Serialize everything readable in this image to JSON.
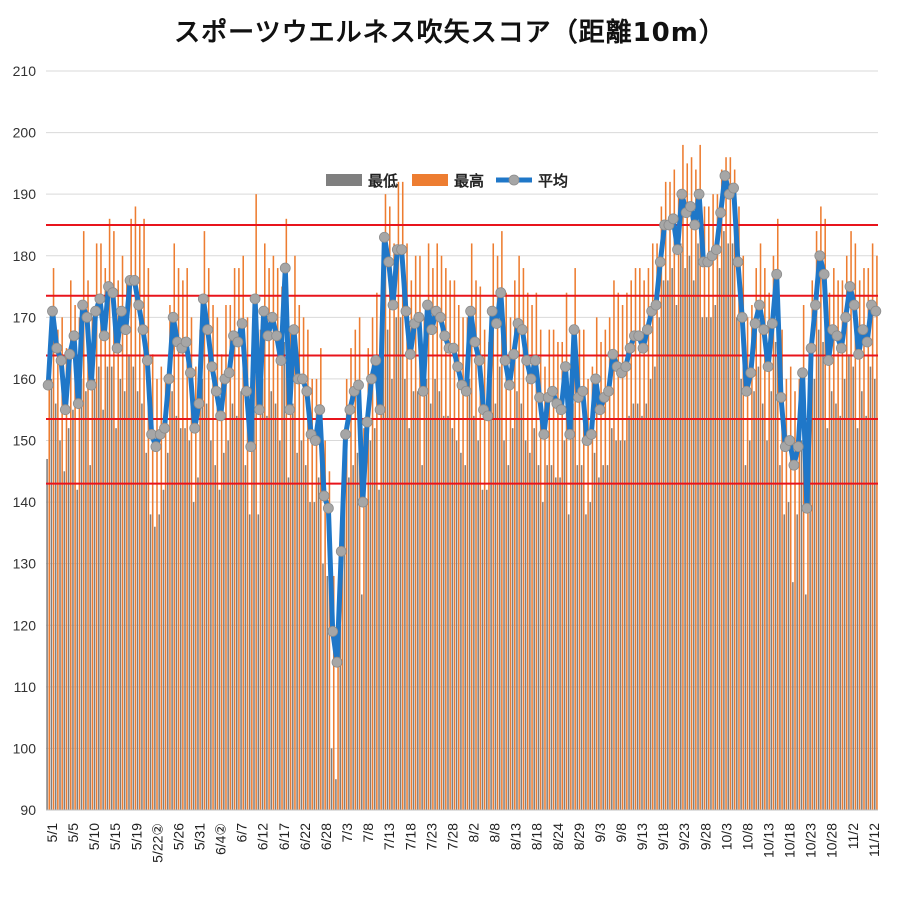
{
  "chart_data": {
    "type": "bar",
    "title": "スポーツウエルネス吹矢スコア（距離10m）",
    "ylim": [
      90,
      210
    ],
    "yticks": [
      90,
      100,
      110,
      120,
      130,
      140,
      150,
      160,
      170,
      180,
      190,
      200,
      210
    ],
    "grid": true,
    "legend_position": "top-center",
    "x_labels": [
      "5/1",
      "5/5",
      "5/10",
      "5/15",
      "5/19",
      "5/22②",
      "5/26",
      "5/31",
      "6/4②",
      "6/7",
      "6/12",
      "6/17",
      "6/22",
      "6/28",
      "7/3",
      "7/8",
      "7/13",
      "7/18",
      "7/23",
      "7/28",
      "8/2",
      "8/8",
      "8/13",
      "8/18",
      "8/24",
      "8/29",
      "9/3",
      "9/8",
      "9/13",
      "9/18",
      "9/23",
      "9/28",
      "10/3",
      "10/8",
      "10/13",
      "10/18",
      "10/23",
      "10/28",
      "11/2",
      "11/12"
    ],
    "reference_lines": [
      185,
      173.5,
      163.8,
      153.5,
      143
    ],
    "series": [
      {
        "name": "最低",
        "color": "#7f7f7f",
        "type": "bar"
      },
      {
        "name": "最高",
        "color": "#ed7d31",
        "type": "bar"
      },
      {
        "name": "平均",
        "color": "#1f77c8",
        "marker_color": "#a6a6a6",
        "type": "line"
      }
    ],
    "averages": [
      159,
      171,
      165,
      163,
      155,
      164,
      167,
      156,
      172,
      170,
      159,
      171,
      173,
      167,
      175,
      174,
      165,
      171,
      168,
      176,
      176,
      172,
      168,
      163,
      151,
      149,
      151,
      152,
      160,
      170,
      166,
      165,
      166,
      161,
      152,
      156,
      173,
      168,
      162,
      158,
      154,
      160,
      161,
      167,
      166,
      169,
      158,
      149,
      173,
      155,
      171,
      167,
      170,
      167,
      163,
      178,
      155,
      168,
      160,
      160,
      158,
      151,
      150,
      155,
      141,
      139,
      119,
      114,
      132,
      151,
      155,
      158,
      159,
      140,
      153,
      160,
      163,
      155,
      183,
      179,
      172,
      181,
      181,
      171,
      164,
      169,
      170,
      158,
      172,
      168,
      171,
      170,
      167,
      165,
      165,
      162,
      159,
      158,
      171,
      166,
      163,
      155,
      154,
      171,
      169,
      174,
      163,
      159,
      164,
      169,
      168,
      163,
      160,
      163,
      157,
      151,
      157,
      158,
      156,
      155,
      162,
      151,
      168,
      157,
      158,
      150,
      151,
      160,
      155,
      157,
      158,
      164,
      162,
      161,
      162,
      165,
      167,
      167,
      165,
      168,
      171,
      172,
      179,
      185,
      185,
      186,
      181,
      190,
      187,
      188,
      185,
      190,
      179,
      179,
      180,
      181,
      187,
      193,
      190,
      191,
      179,
      170,
      158,
      161,
      169,
      172,
      168,
      162,
      169,
      177,
      157,
      149,
      150,
      146,
      149,
      161,
      139,
      165,
      172,
      180,
      177,
      163,
      168,
      167,
      165,
      170,
      175,
      172,
      164,
      168,
      166,
      172,
      171
    ],
    "maxima": [
      165,
      178,
      168,
      170,
      165,
      176,
      172,
      170,
      184,
      176,
      170,
      182,
      182,
      178,
      186,
      184,
      176,
      180,
      176,
      186,
      188,
      185,
      186,
      178,
      164,
      160,
      162,
      160,
      172,
      182,
      178,
      176,
      178,
      170,
      162,
      168,
      184,
      178,
      172,
      170,
      164,
      172,
      172,
      178,
      178,
      180,
      170,
      160,
      190,
      168,
      182,
      178,
      180,
      178,
      175,
      186,
      168,
      180,
      172,
      170,
      168,
      160,
      160,
      165,
      150,
      145,
      128,
      124,
      142,
      160,
      165,
      168,
      170,
      152,
      165,
      170,
      174,
      168,
      190,
      188,
      182,
      192,
      192,
      182,
      176,
      180,
      180,
      170,
      182,
      178,
      182,
      180,
      178,
      176,
      176,
      172,
      170,
      170,
      182,
      176,
      175,
      168,
      166,
      182,
      180,
      184,
      174,
      170,
      176,
      180,
      178,
      174,
      172,
      174,
      168,
      162,
      168,
      168,
      166,
      166,
      174,
      162,
      178,
      168,
      168,
      160,
      162,
      170,
      166,
      168,
      170,
      176,
      174,
      172,
      174,
      176,
      178,
      178,
      176,
      178,
      182,
      182,
      188,
      192,
      192,
      194,
      190,
      198,
      195,
      196,
      194,
      198,
      188,
      188,
      190,
      190,
      194,
      196,
      196,
      194,
      188,
      180,
      170,
      172,
      178,
      182,
      178,
      174,
      180,
      186,
      168,
      160,
      162,
      158,
      160,
      172,
      150,
      176,
      184,
      188,
      186,
      174,
      178,
      176,
      176,
      180,
      184,
      182,
      176,
      178,
      178,
      182,
      180
    ],
    "minima": [
      147,
      160,
      156,
      150,
      145,
      152,
      155,
      142,
      160,
      158,
      146,
      160,
      162,
      155,
      162,
      162,
      152,
      160,
      158,
      164,
      162,
      158,
      156,
      148,
      138,
      136,
      138,
      142,
      148,
      158,
      154,
      152,
      152,
      150,
      140,
      144,
      160,
      156,
      150,
      146,
      142,
      148,
      150,
      156,
      154,
      158,
      146,
      138,
      160,
      138,
      160,
      154,
      158,
      156,
      150,
      166,
      144,
      156,
      148,
      150,
      146,
      140,
      140,
      144,
      130,
      128,
      100,
      95,
      120,
      140,
      144,
      146,
      148,
      125,
      140,
      150,
      152,
      142,
      172,
      168,
      160,
      170,
      170,
      160,
      152,
      158,
      158,
      146,
      160,
      156,
      160,
      158,
      154,
      154,
      152,
      150,
      148,
      146,
      160,
      154,
      150,
      142,
      142,
      160,
      156,
      162,
      150,
      146,
      152,
      158,
      156,
      150,
      148,
      152,
      146,
      140,
      146,
      146,
      144,
      144,
      150,
      138,
      156,
      146,
      146,
      138,
      140,
      148,
      144,
      146,
      146,
      152,
      150,
      150,
      150,
      154,
      156,
      156,
      154,
      156,
      160,
      162,
      170,
      176,
      176,
      178,
      172,
      182,
      178,
      180,
      176,
      182,
      170,
      170,
      170,
      172,
      178,
      184,
      182,
      182,
      170,
      160,
      146,
      150,
      158,
      162,
      156,
      150,
      158,
      166,
      146,
      138,
      140,
      127,
      138,
      150,
      125,
      154,
      160,
      168,
      166,
      152,
      158,
      156,
      154,
      160,
      164,
      162,
      152,
      158,
      154,
      162,
      160
    ]
  }
}
